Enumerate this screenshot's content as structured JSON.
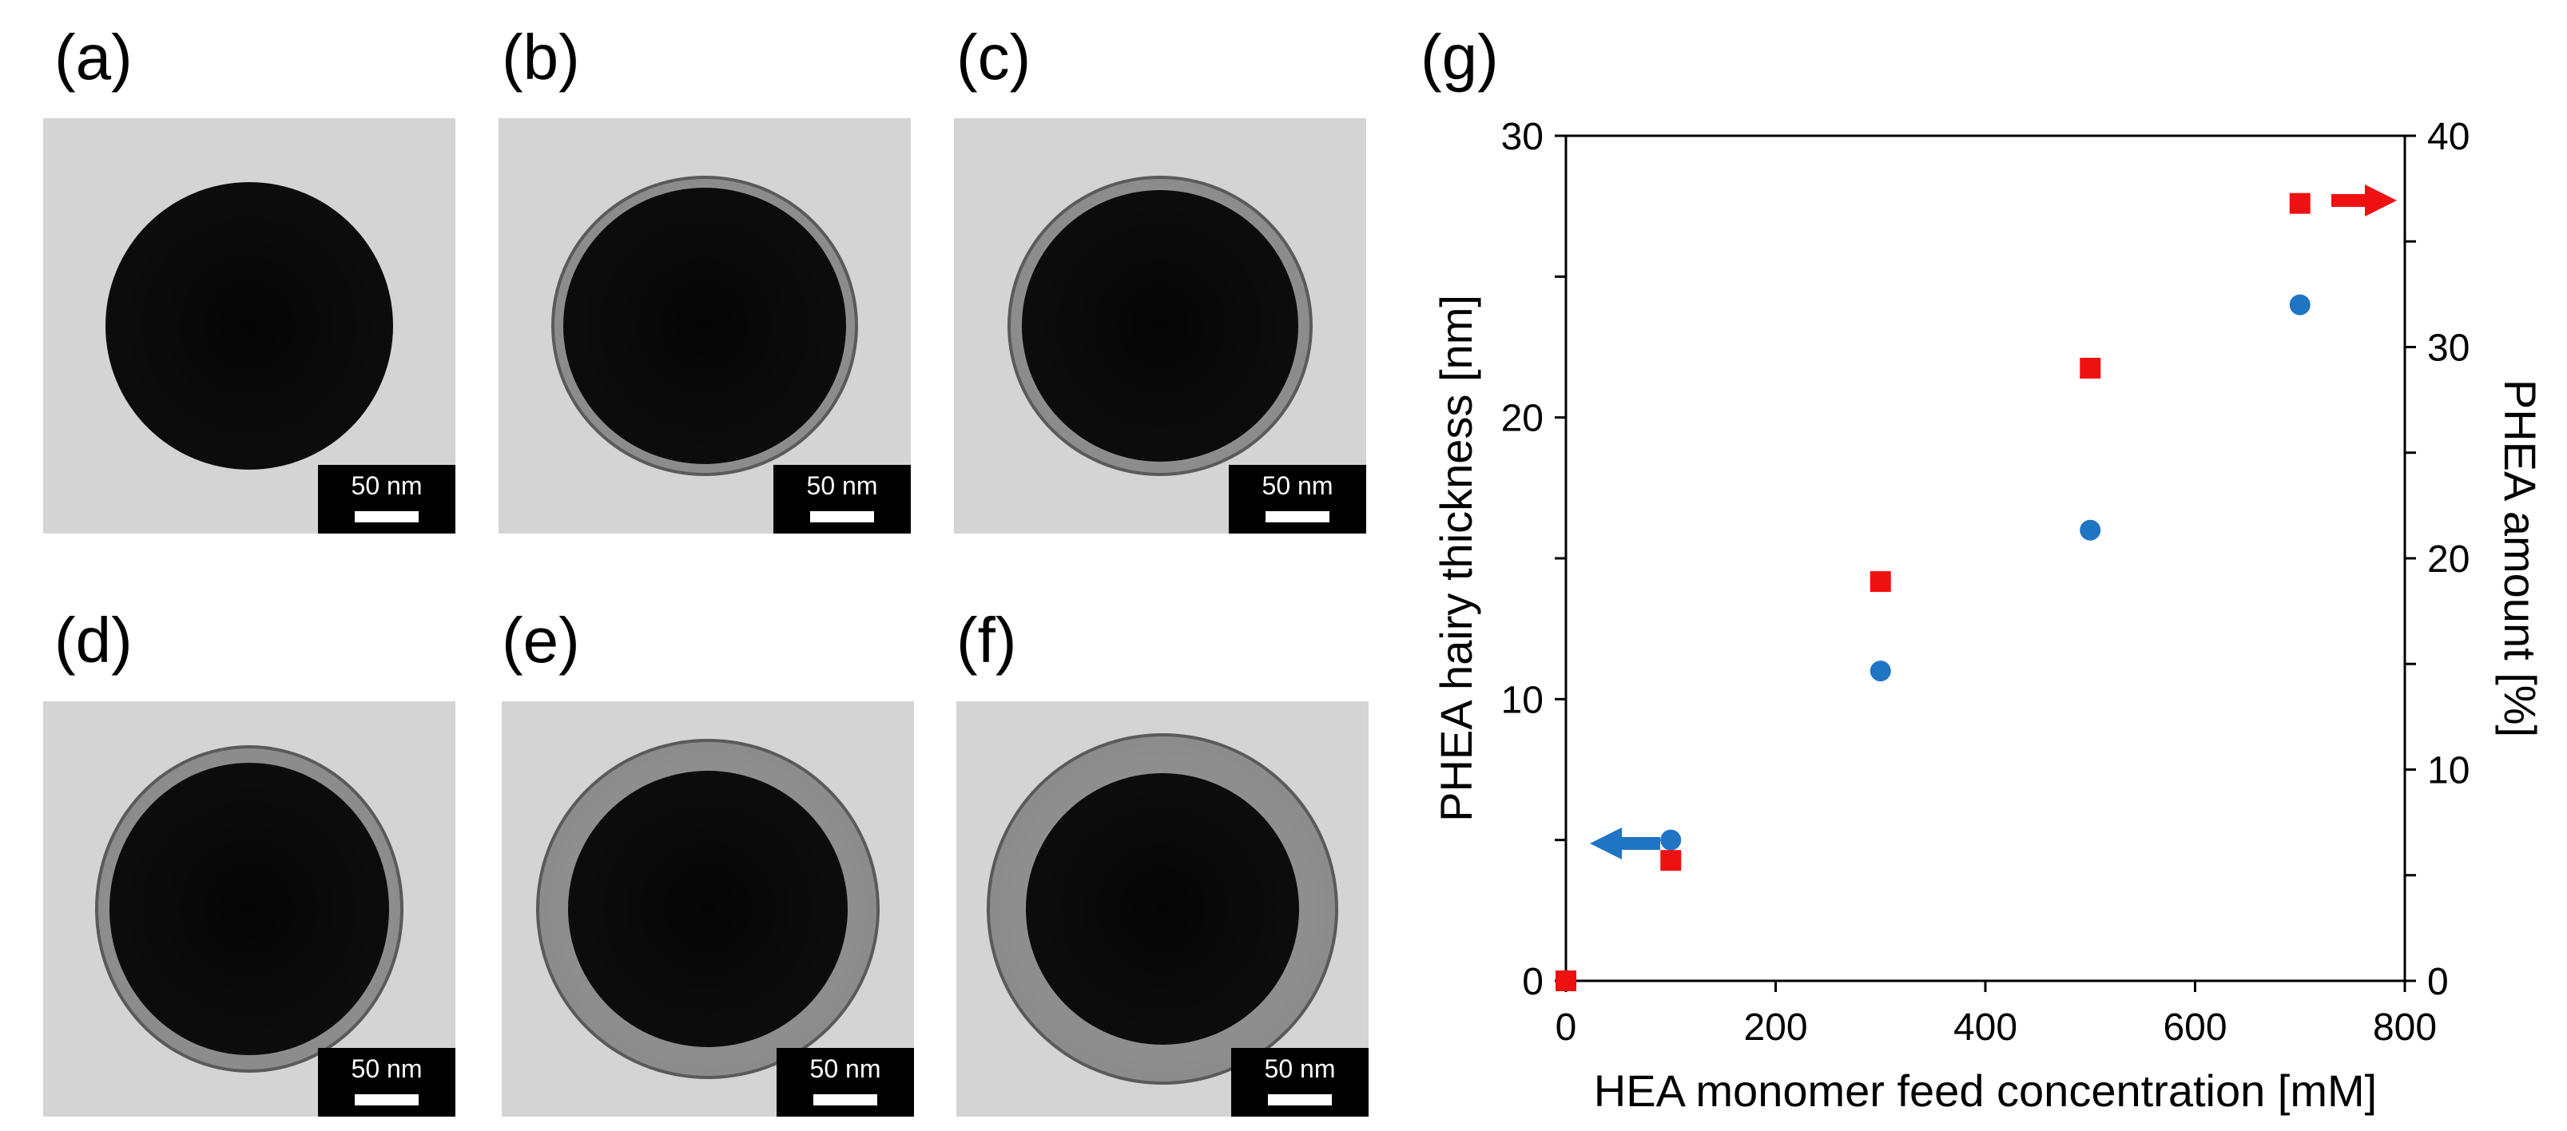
{
  "panels": [
    {
      "label": "(a)",
      "scalebar": "50 nm"
    },
    {
      "label": "(b)",
      "scalebar": "50 nm"
    },
    {
      "label": "(c)",
      "scalebar": "50 nm"
    },
    {
      "label": "(d)",
      "scalebar": "50 nm"
    },
    {
      "label": "(e)",
      "scalebar": "50 nm"
    },
    {
      "label": "(f)",
      "scalebar": "50 nm"
    }
  ],
  "chart_label": "(g)",
  "chart_data": {
    "type": "scatter",
    "title": "",
    "xlabel": "HEA monomer feed concentration [mM]",
    "ylabel": "PHEA hairy thickness [nm]",
    "ylabel_right": "PHEA amount [%]",
    "xlim": [
      0,
      800
    ],
    "ylim": [
      0,
      30
    ],
    "ylim_right": [
      0,
      40
    ],
    "x_ticks": [
      0,
      200,
      400,
      600,
      800
    ],
    "y_ticks": [
      0,
      10,
      20,
      30
    ],
    "y_ticks_right": [
      0,
      10,
      20,
      30,
      40
    ],
    "grid": false,
    "series": [
      {
        "axis": "left",
        "marker": "circle",
        "color": "#1f74c4",
        "x": [
          100,
          300,
          500,
          700
        ],
        "y": [
          5,
          11,
          16,
          24
        ]
      },
      {
        "axis": "right",
        "marker": "square",
        "color": "#ee1111",
        "x": [
          0,
          100,
          300,
          500,
          700
        ],
        "y": [
          0,
          5.7,
          18.9,
          29,
          36.8
        ]
      }
    ]
  }
}
